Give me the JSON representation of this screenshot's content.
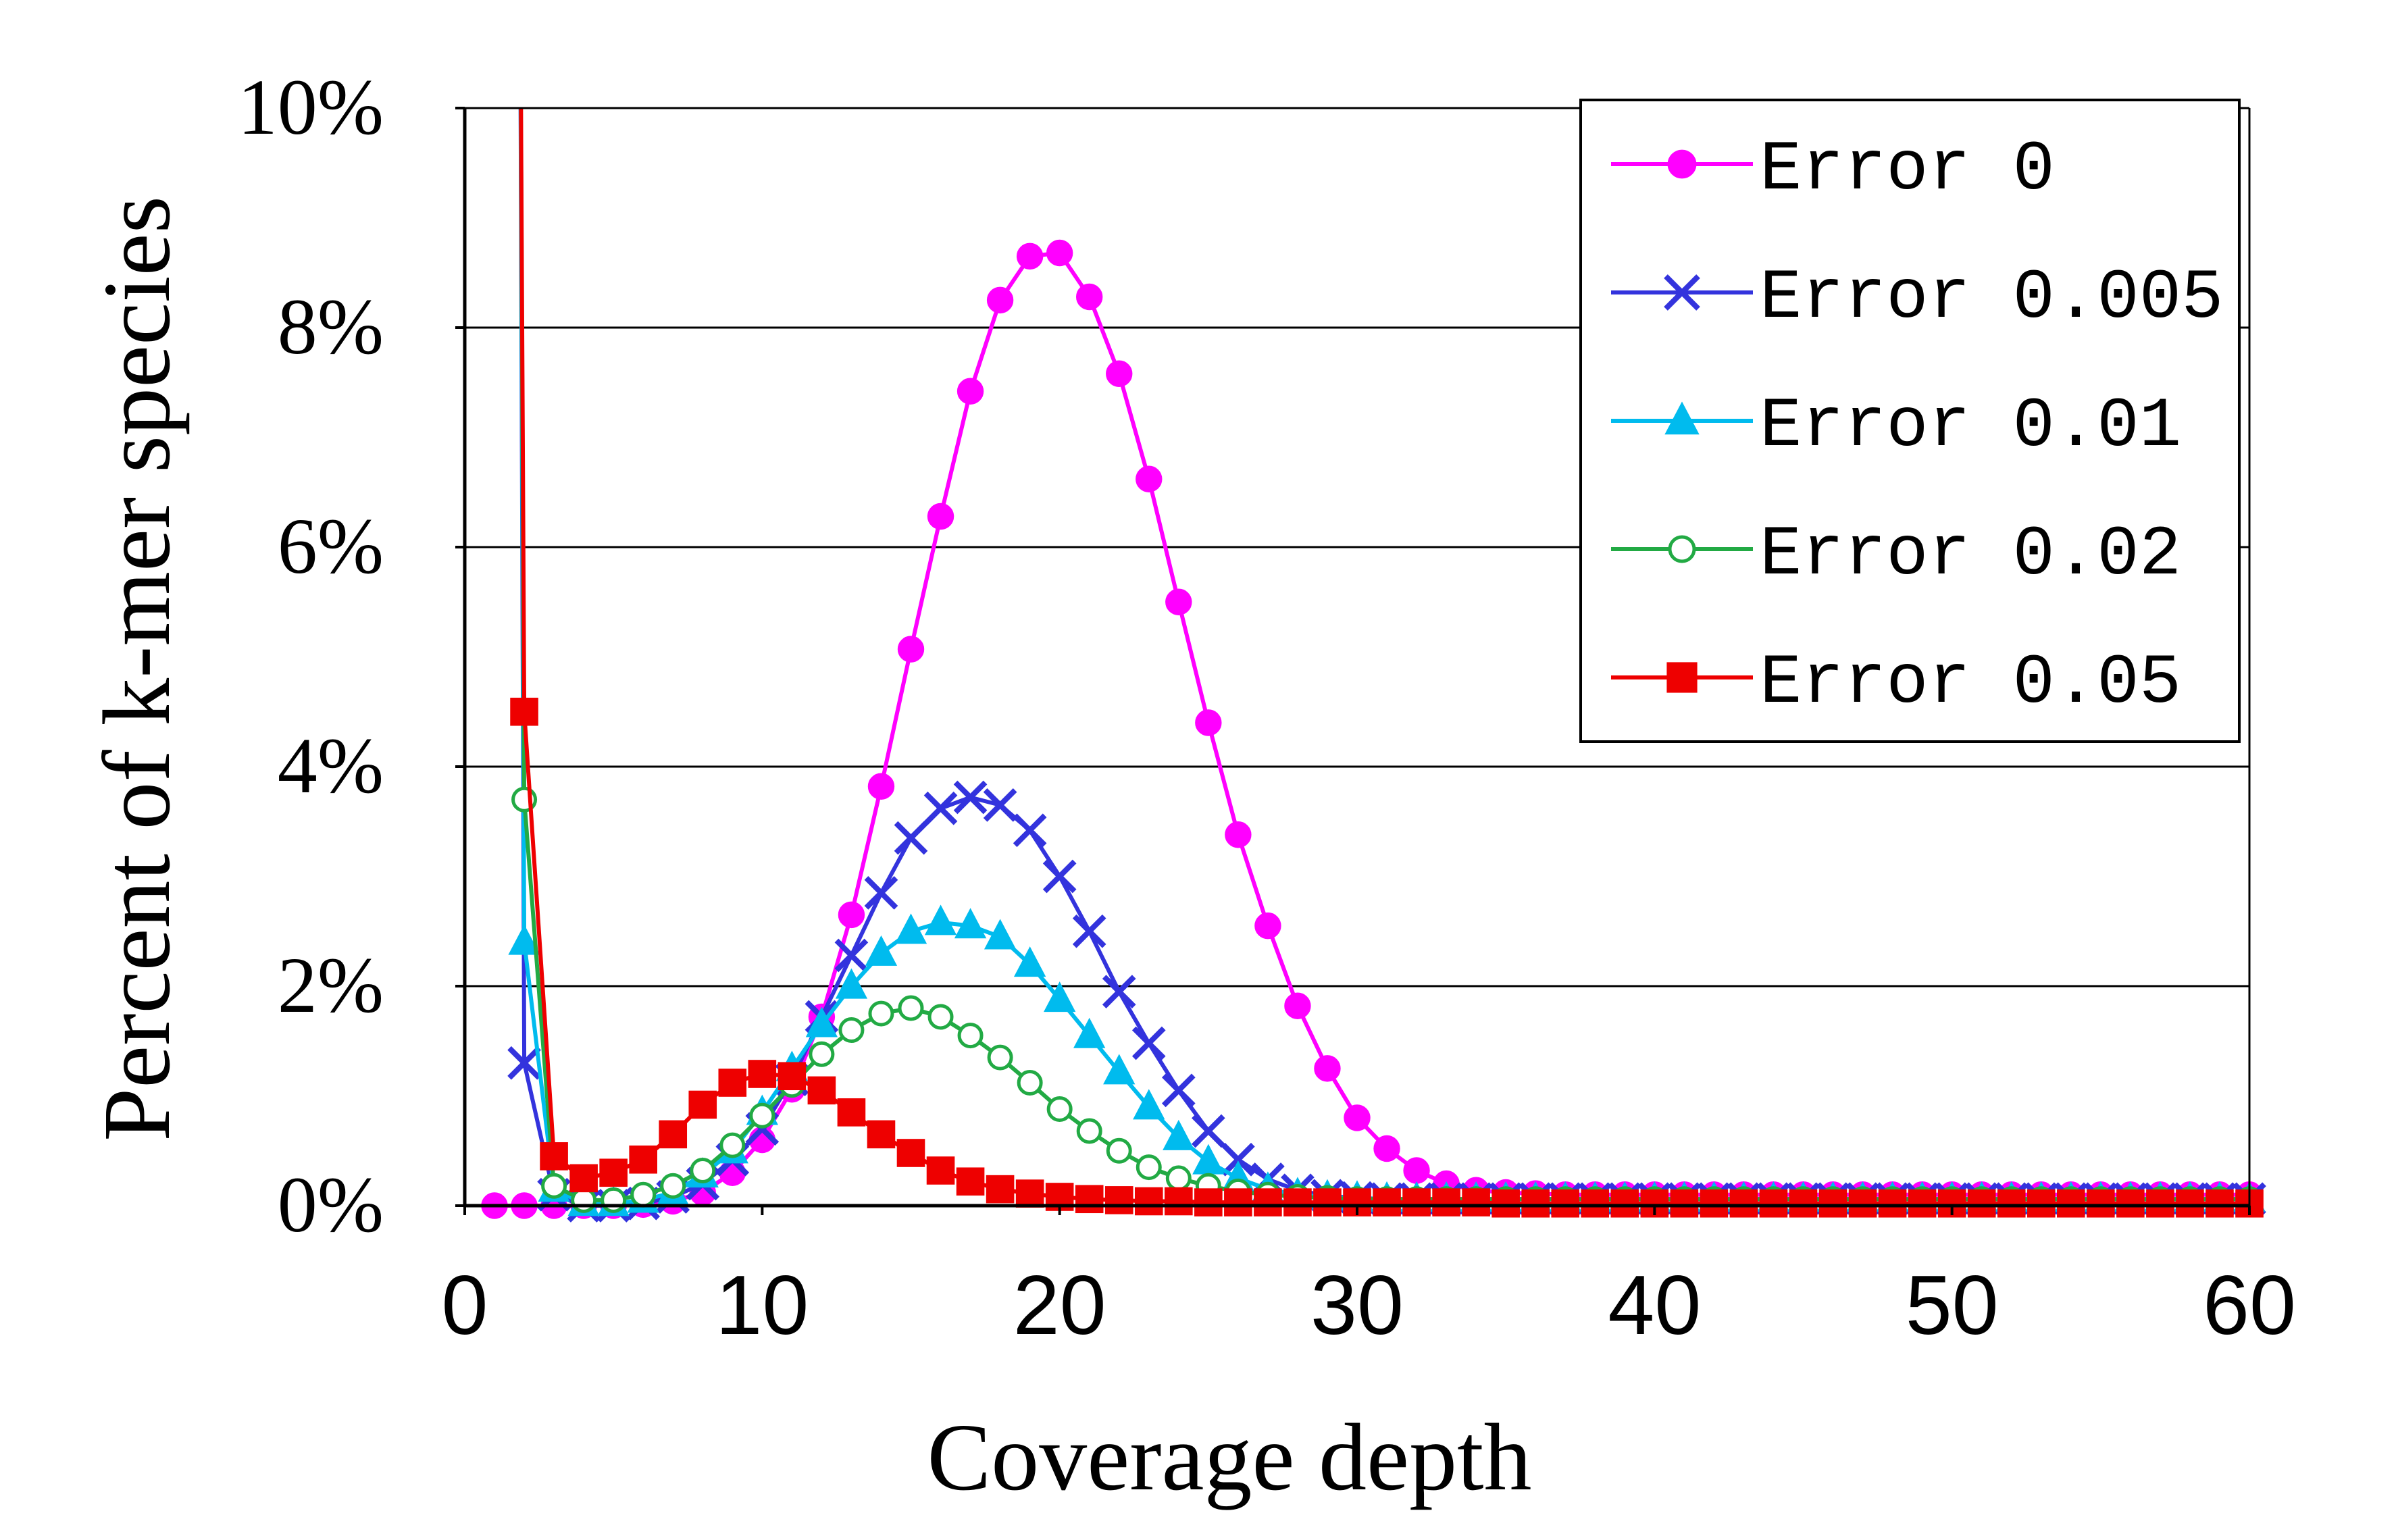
{
  "chart_data": {
    "type": "line",
    "title": "",
    "xlabel": "Coverage depth",
    "ylabel": "Percent of k-mer species",
    "xlim": [
      0,
      60
    ],
    "ylim": [
      0,
      10
    ],
    "x_ticks": [
      "0",
      "10",
      "20",
      "30",
      "40",
      "50",
      "60"
    ],
    "y_ticks": [
      "0%",
      "2%",
      "4%",
      "6%",
      "8%",
      "10%"
    ],
    "grid": "horizontal",
    "legend_position": "top-right",
    "series": [
      {
        "name": "Error 0",
        "color": "#ff00ff",
        "marker": "circle-filled",
        "x": [
          1,
          2,
          3,
          4,
          5,
          6,
          7,
          8,
          9,
          10,
          11,
          12,
          13,
          14,
          15,
          16,
          17,
          18,
          19,
          20,
          21,
          22,
          23,
          24,
          25,
          26,
          27,
          28,
          29,
          30,
          31,
          32,
          33,
          34,
          35,
          36,
          37,
          38,
          39,
          40,
          41,
          42,
          43,
          44,
          45,
          46,
          47,
          48,
          49,
          50,
          51,
          52,
          53,
          54,
          55,
          56,
          57,
          58,
          59,
          60
        ],
        "values": [
          0.0,
          0.0,
          0.0,
          0.0,
          0.0,
          0.01,
          0.04,
          0.12,
          0.3,
          0.6,
          1.06,
          1.72,
          2.65,
          3.82,
          5.07,
          6.28,
          7.42,
          8.25,
          8.65,
          8.68,
          8.28,
          7.58,
          6.62,
          5.5,
          4.4,
          3.38,
          2.55,
          1.82,
          1.25,
          0.8,
          0.52,
          0.32,
          0.2,
          0.14,
          0.12,
          0.11,
          0.1,
          0.1,
          0.1,
          0.1,
          0.1,
          0.1,
          0.1,
          0.1,
          0.1,
          0.1,
          0.1,
          0.1,
          0.1,
          0.1,
          0.1,
          0.1,
          0.1,
          0.1,
          0.1,
          0.1,
          0.1,
          0.1,
          0.1,
          0.1
        ]
      },
      {
        "name": "Error 0.005",
        "color": "#3333dd",
        "marker": "cross",
        "x": [
          2,
          3,
          4,
          5,
          6,
          7,
          8,
          9,
          10,
          11,
          12,
          13,
          14,
          15,
          16,
          17,
          18,
          19,
          20,
          21,
          22,
          23,
          24,
          25,
          26,
          27,
          28,
          29,
          30,
          31,
          32,
          33,
          34,
          35,
          36,
          37,
          38,
          39,
          40,
          41,
          42,
          43,
          44,
          45,
          46,
          47,
          48,
          49,
          50,
          51,
          52,
          53,
          54,
          55,
          56,
          57,
          58,
          59,
          60
        ],
        "values": [
          1.3,
          0.1,
          0.0,
          0.0,
          0.02,
          0.08,
          0.2,
          0.42,
          0.7,
          1.15,
          1.72,
          2.28,
          2.85,
          3.35,
          3.62,
          3.72,
          3.65,
          3.42,
          3.0,
          2.5,
          1.95,
          1.48,
          1.05,
          0.68,
          0.42,
          0.24,
          0.14,
          0.09,
          0.07,
          0.06,
          0.06,
          0.06,
          0.06,
          0.06,
          0.06,
          0.06,
          0.06,
          0.06,
          0.06,
          0.06,
          0.06,
          0.06,
          0.06,
          0.06,
          0.06,
          0.06,
          0.06,
          0.06,
          0.06,
          0.06,
          0.06,
          0.06,
          0.06,
          0.06,
          0.06,
          0.06,
          0.06,
          0.06,
          0.06
        ]
      },
      {
        "name": "Error 0.01",
        "color": "#00bbee",
        "marker": "triangle",
        "x": [
          2,
          3,
          4,
          5,
          6,
          7,
          8,
          9,
          10,
          11,
          12,
          13,
          14,
          15,
          16,
          17,
          18,
          19,
          20,
          21,
          22,
          23,
          24,
          25,
          26,
          27,
          28,
          29,
          30,
          31,
          32,
          33,
          34,
          35,
          36,
          37,
          38,
          39,
          40,
          41,
          42,
          43,
          44,
          45,
          46,
          47,
          48,
          49,
          50,
          51,
          52,
          53,
          54,
          55,
          56,
          57,
          58,
          59,
          60
        ],
        "values": [
          2.4,
          0.15,
          0.02,
          0.02,
          0.05,
          0.12,
          0.28,
          0.5,
          0.85,
          1.25,
          1.65,
          2.0,
          2.3,
          2.5,
          2.58,
          2.55,
          2.45,
          2.2,
          1.88,
          1.55,
          1.22,
          0.9,
          0.62,
          0.4,
          0.25,
          0.15,
          0.1,
          0.08,
          0.07,
          0.06,
          0.06,
          0.06,
          0.06,
          0.06,
          0.06,
          0.06,
          0.06,
          0.06,
          0.06,
          0.06,
          0.06,
          0.06,
          0.06,
          0.06,
          0.06,
          0.06,
          0.06,
          0.06,
          0.06,
          0.06,
          0.06,
          0.06,
          0.06,
          0.06,
          0.06,
          0.06,
          0.06,
          0.06,
          0.06
        ]
      },
      {
        "name": "Error 0.02",
        "color": "#22aa44",
        "marker": "circle-open",
        "x": [
          2,
          3,
          4,
          5,
          6,
          7,
          8,
          9,
          10,
          11,
          12,
          13,
          14,
          15,
          16,
          17,
          18,
          19,
          20,
          21,
          22,
          23,
          24,
          25,
          26,
          27,
          28,
          29,
          30,
          31,
          32,
          33,
          34,
          35,
          36,
          37,
          38,
          39,
          40,
          41,
          42,
          43,
          44,
          45,
          46,
          47,
          48,
          49,
          50,
          51,
          52,
          53,
          54,
          55,
          56,
          57,
          58,
          59,
          60
        ],
        "values": [
          3.7,
          0.18,
          0.05,
          0.05,
          0.1,
          0.18,
          0.32,
          0.55,
          0.82,
          1.1,
          1.38,
          1.6,
          1.75,
          1.8,
          1.72,
          1.55,
          1.35,
          1.12,
          0.88,
          0.68,
          0.5,
          0.35,
          0.25,
          0.18,
          0.13,
          0.1,
          0.08,
          0.07,
          0.06,
          0.06,
          0.06,
          0.06,
          0.06,
          0.06,
          0.06,
          0.06,
          0.06,
          0.06,
          0.06,
          0.06,
          0.06,
          0.06,
          0.06,
          0.06,
          0.06,
          0.06,
          0.06,
          0.06,
          0.06,
          0.06,
          0.06,
          0.06,
          0.06,
          0.06,
          0.06,
          0.06,
          0.06,
          0.06,
          0.06
        ]
      },
      {
        "name": "Error 0.05",
        "color": "#ee0000",
        "marker": "square",
        "x": [
          2,
          3,
          4,
          5,
          6,
          7,
          8,
          9,
          10,
          11,
          12,
          13,
          14,
          15,
          16,
          17,
          18,
          19,
          20,
          21,
          22,
          23,
          24,
          25,
          26,
          27,
          28,
          29,
          30,
          31,
          32,
          33,
          34,
          35,
          36,
          37,
          38,
          39,
          40,
          41,
          42,
          43,
          44,
          45,
          46,
          47,
          48,
          49,
          50,
          51,
          52,
          53,
          54,
          55,
          56,
          57,
          58,
          59,
          60
        ],
        "values": [
          4.5,
          0.45,
          0.25,
          0.3,
          0.42,
          0.65,
          0.92,
          1.12,
          1.2,
          1.18,
          1.05,
          0.85,
          0.65,
          0.48,
          0.32,
          0.22,
          0.15,
          0.11,
          0.08,
          0.06,
          0.05,
          0.04,
          0.04,
          0.03,
          0.03,
          0.03,
          0.03,
          0.03,
          0.03,
          0.03,
          0.03,
          0.03,
          0.03,
          0.02,
          0.02,
          0.02,
          0.02,
          0.02,
          0.02,
          0.02,
          0.02,
          0.02,
          0.02,
          0.02,
          0.02,
          0.02,
          0.02,
          0.02,
          0.02,
          0.02,
          0.02,
          0.02,
          0.02,
          0.02,
          0.02,
          0.02,
          0.02,
          0.02,
          0.02
        ]
      }
    ]
  }
}
